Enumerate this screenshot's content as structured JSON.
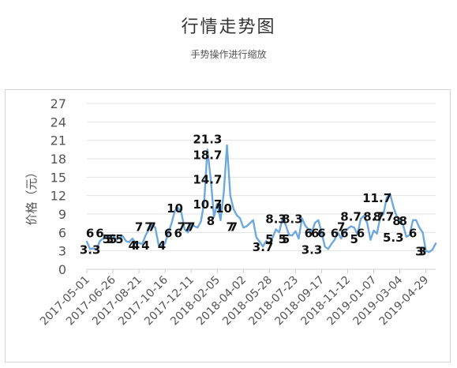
{
  "header": {
    "title": "行情走势图",
    "subtitle": "手势操作进行缩放"
  },
  "chart_data": {
    "type": "line",
    "ylabel": "价格（元）",
    "xlabel": "",
    "ylim": [
      0,
      27
    ],
    "yticks": [
      0,
      3,
      6,
      9,
      12,
      15,
      18,
      21,
      24,
      27
    ],
    "grid": true,
    "line_color": "#6fa8dc",
    "grid_color": "#e3e3e3",
    "x_tick_labels": [
      "2017-05-01",
      "2017-06-26",
      "2017-08-21",
      "2017-10-16",
      "2017-12-11",
      "2018-02-05",
      "2018-04-02",
      "2018-05-28",
      "2018-07-23",
      "2018-09-17",
      "2018-11-12",
      "2019-01-07",
      "2019-03-04",
      "2019-04-29"
    ],
    "series": [
      {
        "x": [
          "2017-05-01",
          "2017-05-08",
          "2017-05-15",
          "2017-05-22",
          "2017-05-29",
          "2017-06-05",
          "2017-06-12",
          "2017-06-19",
          "2017-06-26",
          "2017-07-03",
          "2017-07-10",
          "2017-07-17",
          "2017-07-24",
          "2017-07-31",
          "2017-08-07",
          "2017-08-14",
          "2017-08-21",
          "2017-08-28",
          "2017-09-04",
          "2017-09-11",
          "2017-09-18",
          "2017-09-25",
          "2017-10-02",
          "2017-10-09",
          "2017-10-16",
          "2017-10-23",
          "2017-10-30",
          "2017-11-06",
          "2017-11-13",
          "2017-11-20",
          "2017-11-27",
          "2017-12-04",
          "2017-12-11",
          "2017-12-18",
          "2017-12-25",
          "2018-01-01",
          "2018-01-08",
          "2018-01-15",
          "2018-01-22",
          "2018-01-29",
          "2018-02-05",
          "2018-02-12",
          "2018-02-19",
          "2018-02-26",
          "2018-03-05",
          "2018-03-12",
          "2018-03-19",
          "2018-03-26",
          "2018-04-02",
          "2018-04-09",
          "2018-04-16",
          "2018-04-23",
          "2018-04-30",
          "2018-05-07",
          "2018-05-14",
          "2018-05-21",
          "2018-05-28",
          "2018-06-04",
          "2018-06-11",
          "2018-06-18",
          "2018-06-25",
          "2018-07-02",
          "2018-07-09",
          "2018-07-16",
          "2018-07-23",
          "2018-07-30",
          "2018-08-06",
          "2018-08-13",
          "2018-08-20",
          "2018-08-27",
          "2018-09-03",
          "2018-09-10",
          "2018-09-17",
          "2018-09-24",
          "2018-10-01",
          "2018-10-08",
          "2018-10-15",
          "2018-10-22",
          "2018-10-29",
          "2018-11-05",
          "2018-11-12",
          "2018-11-19",
          "2018-11-26",
          "2018-12-03",
          "2018-12-10",
          "2018-12-17",
          "2018-12-24",
          "2018-12-31",
          "2019-01-07",
          "2019-01-14",
          "2019-01-21",
          "2019-01-28",
          "2019-02-04",
          "2019-02-11",
          "2019-02-18",
          "2019-02-25",
          "2019-03-04",
          "2019-03-11",
          "2019-03-18",
          "2019-03-25",
          "2019-04-01",
          "2019-04-08",
          "2019-04-15",
          "2019-04-22",
          "2019-04-29",
          "2019-05-06",
          "2019-05-13",
          "2019-05-20"
        ],
        "values": [
          4.5,
          3.3,
          3.4,
          3.2,
          4.6,
          5.0,
          5.5,
          5.2,
          5.6,
          4.8,
          5.1,
          5.4,
          4.6,
          4.4,
          5.0,
          4.2,
          4.3,
          4.1,
          5.5,
          6.5,
          7.2,
          6.8,
          4.0,
          3.8,
          4.2,
          6.0,
          7.5,
          9.5,
          10.0,
          9.2,
          6.5,
          6.0,
          7.5,
          7.0,
          6.8,
          7.8,
          11.0,
          19.5,
          14.7,
          8.5,
          10.7,
          8.0,
          12.5,
          20.2,
          12.0,
          9.8,
          8.8,
          8.3,
          6.8,
          7.0,
          7.5,
          8.0,
          5.2,
          4.5,
          3.7,
          4.6,
          4.2,
          5.2,
          6.5,
          6.0,
          8.3,
          7.2,
          5.6,
          5.5,
          6.2,
          5.0,
          8.3,
          7.1,
          6.5,
          6.0,
          7.6,
          8.0,
          6.0,
          3.7,
          3.3,
          4.1,
          4.8,
          6.0,
          5.0,
          6.0,
          6.6,
          7.0,
          6.8,
          5.7,
          8.2,
          8.7,
          7.5,
          4.8,
          6.3,
          5.8,
          8.5,
          9.0,
          11.7,
          12.3,
          10.2,
          8.7,
          8.0,
          7.2,
          5.3,
          5.6,
          8.0,
          8.0,
          6.8,
          6.0,
          3.0,
          2.8,
          3.2,
          4.2
        ]
      }
    ],
    "annotations": [
      {
        "x": "2017-05-08",
        "y": 6,
        "label": "6"
      },
      {
        "x": "2017-05-08",
        "y": 3.3,
        "label": "3.3"
      },
      {
        "x": "2017-05-29",
        "y": 6,
        "label": "6"
      },
      {
        "x": "2017-06-12",
        "y": 5,
        "label": "5"
      },
      {
        "x": "2017-06-19",
        "y": 5,
        "label": "5"
      },
      {
        "x": "2017-06-26",
        "y": 5,
        "label": "5"
      },
      {
        "x": "2017-07-10",
        "y": 5,
        "label": "5"
      },
      {
        "x": "2017-08-07",
        "y": 4,
        "label": "4"
      },
      {
        "x": "2017-08-14",
        "y": 4,
        "label": "4"
      },
      {
        "x": "2017-08-21",
        "y": 7,
        "label": "7"
      },
      {
        "x": "2017-09-04",
        "y": 4,
        "label": "4"
      },
      {
        "x": "2017-09-11",
        "y": 7,
        "label": "7"
      },
      {
        "x": "2017-09-18",
        "y": 7,
        "label": "7"
      },
      {
        "x": "2017-10-09",
        "y": 4,
        "label": "4"
      },
      {
        "x": "2017-10-23",
        "y": 6,
        "label": "6"
      },
      {
        "x": "2017-11-06",
        "y": 10,
        "label": "10"
      },
      {
        "x": "2017-11-13",
        "y": 6,
        "label": "6"
      },
      {
        "x": "2017-11-20",
        "y": 7,
        "label": "7"
      },
      {
        "x": "2017-12-04",
        "y": 7,
        "label": "7"
      },
      {
        "x": "2017-12-11",
        "y": 7,
        "label": "7"
      },
      {
        "x": "2018-01-15",
        "y": 21.3,
        "label": "21.3"
      },
      {
        "x": "2018-01-15",
        "y": 18.7,
        "label": "18.7"
      },
      {
        "x": "2018-01-15",
        "y": 14.7,
        "label": "14.7"
      },
      {
        "x": "2018-01-15",
        "y": 10.7,
        "label": "10.7"
      },
      {
        "x": "2018-01-22",
        "y": 8,
        "label": "8"
      },
      {
        "x": "2018-02-19",
        "y": 10,
        "label": "10"
      },
      {
        "x": "2018-03-05",
        "y": 7,
        "label": "7"
      },
      {
        "x": "2018-03-12",
        "y": 7,
        "label": "7"
      },
      {
        "x": "2018-05-14",
        "y": 3.7,
        "label": "3.7"
      },
      {
        "x": "2018-05-28",
        "y": 5,
        "label": "5"
      },
      {
        "x": "2018-06-11",
        "y": 8.3,
        "label": "8.3"
      },
      {
        "x": "2018-06-25",
        "y": 5,
        "label": "5"
      },
      {
        "x": "2018-07-02",
        "y": 5,
        "label": "5"
      },
      {
        "x": "2018-07-16",
        "y": 8.3,
        "label": "8.3"
      },
      {
        "x": "2018-08-20",
        "y": 6,
        "label": "6"
      },
      {
        "x": "2018-09-03",
        "y": 6,
        "label": "6"
      },
      {
        "x": "2018-08-27",
        "y": 3.3,
        "label": "3.3"
      },
      {
        "x": "2018-09-17",
        "y": 6,
        "label": "6"
      },
      {
        "x": "2018-10-15",
        "y": 6,
        "label": "6"
      },
      {
        "x": "2018-10-29",
        "y": 7,
        "label": "7"
      },
      {
        "x": "2018-11-05",
        "y": 6,
        "label": "6"
      },
      {
        "x": "2018-11-19",
        "y": 8.7,
        "label": "8.7"
      },
      {
        "x": "2018-11-26",
        "y": 5,
        "label": "5"
      },
      {
        "x": "2018-12-10",
        "y": 6,
        "label": "6"
      },
      {
        "x": "2019-01-14",
        "y": 11.7,
        "label": "11.7"
      },
      {
        "x": "2019-01-07",
        "y": 8.7,
        "label": "8.7"
      },
      {
        "x": "2019-01-28",
        "y": 8.7,
        "label": "8.7"
      },
      {
        "x": "2019-02-18",
        "y": 5.3,
        "label": "5.3"
      },
      {
        "x": "2019-02-25",
        "y": 8,
        "label": "8"
      },
      {
        "x": "2019-03-11",
        "y": 8,
        "label": "8"
      },
      {
        "x": "2019-04-01",
        "y": 6,
        "label": "6"
      },
      {
        "x": "2019-04-15",
        "y": 3,
        "label": "3"
      },
      {
        "x": "2019-04-22",
        "y": 3,
        "label": "3"
      }
    ]
  }
}
